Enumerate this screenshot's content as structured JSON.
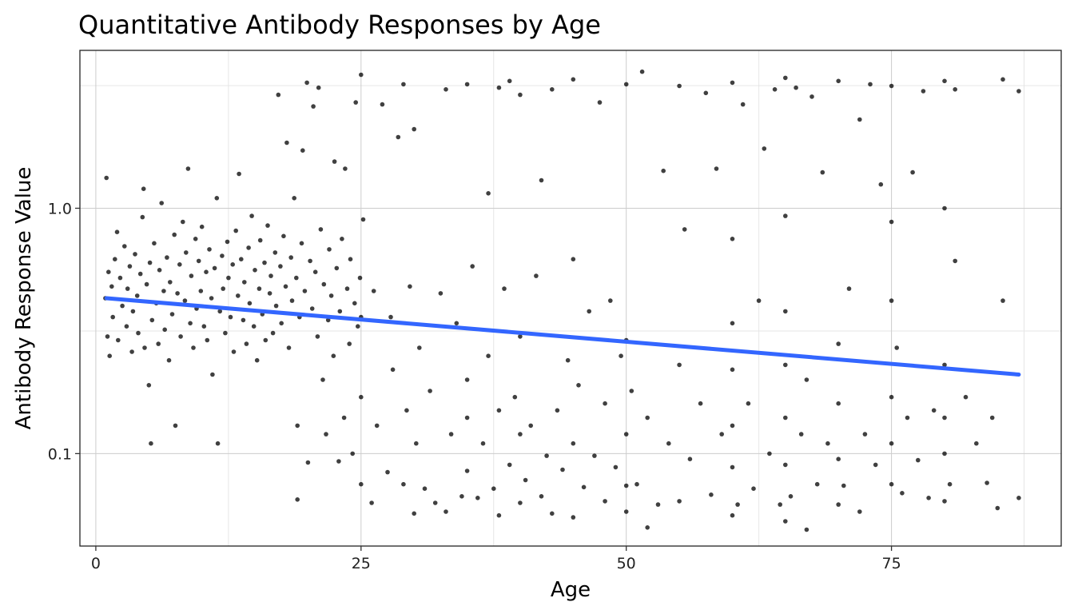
{
  "chart_data": {
    "type": "scatter",
    "title": "Quantitative Antibody Responses by Age",
    "xlabel": "Age",
    "ylabel": "Antibody Response Value",
    "xlim": [
      -1.5,
      91
    ],
    "ylim": [
      0.042,
      4.4
    ],
    "y_scale": "log10",
    "x_ticks": [
      0,
      25,
      50,
      75
    ],
    "x_tick_labels": [
      "0",
      "25",
      "50",
      "75"
    ],
    "x_minor_ticks": [
      12.5,
      37.5,
      62.5,
      87.5
    ],
    "y_ticks": [
      0.1,
      1.0
    ],
    "y_tick_labels": [
      "0.1",
      "1.0"
    ],
    "y_minor_ticks": [
      0.316,
      3.16
    ],
    "grid": true,
    "legend": "none",
    "trend_line": {
      "method": "linear fit on log scale",
      "color": "#3366ff",
      "x": [
        1,
        87
      ],
      "y": [
        0.43,
        0.21
      ]
    },
    "point_color": "#000000",
    "points": [
      [
        0.9,
        0.43
      ],
      [
        1.0,
        1.33
      ],
      [
        1.1,
        0.3
      ],
      [
        1.2,
        0.55
      ],
      [
        1.3,
        0.25
      ],
      [
        1.5,
        0.48
      ],
      [
        1.6,
        0.36
      ],
      [
        1.8,
        0.62
      ],
      [
        2.0,
        0.8
      ],
      [
        2.1,
        0.29
      ],
      [
        2.3,
        0.52
      ],
      [
        2.5,
        0.4
      ],
      [
        2.7,
        0.7
      ],
      [
        2.9,
        0.33
      ],
      [
        3.0,
        0.47
      ],
      [
        3.2,
        0.58
      ],
      [
        3.4,
        0.26
      ],
      [
        3.5,
        0.38
      ],
      [
        3.7,
        0.65
      ],
      [
        3.9,
        0.44
      ],
      [
        4.0,
        0.31
      ],
      [
        4.2,
        0.54
      ],
      [
        4.4,
        0.92
      ],
      [
        4.5,
        1.2
      ],
      [
        4.6,
        0.27
      ],
      [
        4.8,
        0.49
      ],
      [
        5.0,
        0.19
      ],
      [
        5.1,
        0.6
      ],
      [
        5.2,
        0.11
      ],
      [
        5.3,
        0.35
      ],
      [
        5.5,
        0.72
      ],
      [
        5.7,
        0.41
      ],
      [
        5.9,
        0.28
      ],
      [
        6.0,
        0.56
      ],
      [
        6.2,
        1.05
      ],
      [
        6.4,
        0.46
      ],
      [
        6.5,
        0.32
      ],
      [
        6.7,
        0.63
      ],
      [
        6.9,
        0.24
      ],
      [
        7.0,
        0.5
      ],
      [
        7.2,
        0.37
      ],
      [
        7.4,
        0.78
      ],
      [
        7.5,
        0.13
      ],
      [
        7.7,
        0.45
      ],
      [
        7.9,
        0.59
      ],
      [
        8.0,
        0.3
      ],
      [
        8.2,
        0.88
      ],
      [
        8.4,
        0.42
      ],
      [
        8.5,
        0.66
      ],
      [
        8.7,
        1.45
      ],
      [
        8.9,
        0.34
      ],
      [
        9.0,
        0.53
      ],
      [
        9.2,
        0.27
      ],
      [
        9.4,
        0.75
      ],
      [
        9.5,
        0.39
      ],
      [
        9.7,
        0.61
      ],
      [
        9.9,
        0.46
      ],
      [
        10.0,
        0.84
      ],
      [
        10.2,
        0.33
      ],
      [
        10.4,
        0.55
      ],
      [
        10.5,
        0.29
      ],
      [
        10.7,
        0.68
      ],
      [
        10.9,
        0.43
      ],
      [
        11.0,
        0.21
      ],
      [
        11.2,
        0.57
      ],
      [
        11.4,
        1.1
      ],
      [
        11.5,
        0.11
      ],
      [
        11.7,
        0.38
      ],
      [
        11.9,
        0.64
      ],
      [
        12.0,
        0.47
      ],
      [
        12.2,
        0.31
      ],
      [
        12.4,
        0.73
      ],
      [
        12.5,
        0.52
      ],
      [
        12.7,
        0.36
      ],
      [
        12.9,
        0.59
      ],
      [
        13.0,
        0.26
      ],
      [
        13.2,
        0.81
      ],
      [
        13.4,
        0.44
      ],
      [
        13.5,
        1.38
      ],
      [
        13.7,
        0.62
      ],
      [
        13.9,
        0.35
      ],
      [
        14.0,
        0.5
      ],
      [
        14.2,
        0.28
      ],
      [
        14.4,
        0.69
      ],
      [
        14.5,
        0.41
      ],
      [
        14.7,
        0.93
      ],
      [
        14.9,
        0.33
      ],
      [
        15.0,
        0.56
      ],
      [
        15.2,
        0.24
      ],
      [
        15.4,
        0.47
      ],
      [
        15.5,
        0.74
      ],
      [
        15.7,
        0.37
      ],
      [
        15.9,
        0.6
      ],
      [
        16.0,
        0.29
      ],
      [
        16.2,
        0.85
      ],
      [
        16.4,
        0.45
      ],
      [
        16.5,
        0.53
      ],
      [
        16.7,
        0.31
      ],
      [
        16.9,
        0.66
      ],
      [
        17.0,
        0.4
      ],
      [
        17.2,
        2.9
      ],
      [
        17.4,
        0.58
      ],
      [
        17.5,
        0.34
      ],
      [
        17.7,
        0.77
      ],
      [
        17.9,
        0.48
      ],
      [
        18.0,
        1.85
      ],
      [
        18.2,
        0.27
      ],
      [
        18.4,
        0.63
      ],
      [
        18.5,
        0.42
      ],
      [
        18.7,
        1.1
      ],
      [
        18.9,
        0.52
      ],
      [
        19.0,
        0.065
      ],
      [
        19.0,
        0.13
      ],
      [
        19.2,
        0.36
      ],
      [
        19.4,
        0.72
      ],
      [
        19.5,
        1.72
      ],
      [
        19.7,
        0.46
      ],
      [
        19.9,
        3.25
      ],
      [
        20.0,
        0.092
      ],
      [
        20.2,
        0.61
      ],
      [
        20.4,
        0.39
      ],
      [
        20.5,
        2.6
      ],
      [
        20.7,
        0.55
      ],
      [
        20.9,
        0.3
      ],
      [
        21.0,
        3.1
      ],
      [
        21.2,
        0.82
      ],
      [
        21.4,
        0.2
      ],
      [
        21.5,
        0.49
      ],
      [
        21.7,
        0.12
      ],
      [
        21.9,
        0.35
      ],
      [
        22.0,
        0.68
      ],
      [
        22.2,
        0.44
      ],
      [
        22.4,
        0.25
      ],
      [
        22.5,
        1.55
      ],
      [
        22.7,
        0.57
      ],
      [
        22.9,
        0.093
      ],
      [
        23.0,
        0.38
      ],
      [
        23.2,
        0.75
      ],
      [
        23.4,
        0.14
      ],
      [
        23.5,
        1.45
      ],
      [
        23.7,
        0.47
      ],
      [
        23.9,
        0.28
      ],
      [
        24.0,
        0.62
      ],
      [
        24.2,
        0.1
      ],
      [
        24.4,
        0.41
      ],
      [
        24.5,
        2.7
      ],
      [
        24.7,
        0.33
      ],
      [
        24.9,
        0.52
      ],
      [
        25.0,
        0.075
      ],
      [
        25.0,
        3.5
      ],
      [
        25.0,
        0.17
      ],
      [
        25.0,
        0.36
      ],
      [
        25.2,
        0.9
      ],
      [
        26.0,
        0.063
      ],
      [
        26.2,
        0.46
      ],
      [
        26.5,
        0.13
      ],
      [
        27.0,
        2.65
      ],
      [
        27.5,
        0.084
      ],
      [
        27.8,
        0.36
      ],
      [
        28.0,
        0.22
      ],
      [
        28.5,
        1.95
      ],
      [
        29.0,
        3.2
      ],
      [
        29.0,
        0.075
      ],
      [
        29.3,
        0.15
      ],
      [
        29.6,
        0.48
      ],
      [
        30.0,
        2.1
      ],
      [
        30.0,
        0.057
      ],
      [
        30.2,
        0.11
      ],
      [
        30.5,
        0.27
      ],
      [
        31.0,
        0.072
      ],
      [
        31.5,
        0.18
      ],
      [
        32.0,
        0.063
      ],
      [
        32.5,
        0.45
      ],
      [
        33.0,
        3.05
      ],
      [
        33.0,
        0.058
      ],
      [
        33.5,
        0.12
      ],
      [
        34.0,
        0.34
      ],
      [
        34.5,
        0.067
      ],
      [
        35.0,
        3.2
      ],
      [
        35.0,
        0.14
      ],
      [
        35.0,
        0.2
      ],
      [
        35.0,
        0.085
      ],
      [
        35.5,
        0.58
      ],
      [
        36.0,
        0.066
      ],
      [
        36.5,
        0.11
      ],
      [
        37.0,
        1.15
      ],
      [
        37.0,
        0.25
      ],
      [
        37.5,
        0.072
      ],
      [
        38.0,
        3.1
      ],
      [
        38.0,
        0.15
      ],
      [
        38.0,
        0.056
      ],
      [
        38.5,
        0.47
      ],
      [
        39.0,
        0.09
      ],
      [
        39.0,
        3.3
      ],
      [
        39.5,
        0.17
      ],
      [
        40.0,
        0.063
      ],
      [
        40.0,
        0.12
      ],
      [
        40.0,
        0.3
      ],
      [
        40.0,
        2.9
      ],
      [
        40.5,
        0.078
      ],
      [
        41.0,
        0.13
      ],
      [
        41.5,
        0.53
      ],
      [
        42.0,
        0.067
      ],
      [
        42.0,
        1.3
      ],
      [
        42.5,
        0.098
      ],
      [
        43.0,
        0.057
      ],
      [
        43.0,
        3.05
      ],
      [
        43.5,
        0.15
      ],
      [
        44.0,
        0.086
      ],
      [
        44.5,
        0.24
      ],
      [
        45.0,
        0.055
      ],
      [
        45.0,
        0.11
      ],
      [
        45.0,
        3.35
      ],
      [
        45.0,
        0.62
      ],
      [
        45.5,
        0.19
      ],
      [
        46.0,
        0.073
      ],
      [
        46.5,
        0.38
      ],
      [
        47.0,
        0.098
      ],
      [
        47.5,
        2.7
      ],
      [
        48.0,
        0.064
      ],
      [
        48.0,
        0.16
      ],
      [
        48.5,
        0.42
      ],
      [
        49.0,
        0.088
      ],
      [
        49.5,
        0.25
      ],
      [
        50.0,
        0.058
      ],
      [
        50.0,
        0.12
      ],
      [
        50.0,
        3.2
      ],
      [
        50.0,
        0.29
      ],
      [
        50.0,
        0.074
      ],
      [
        50.5,
        0.18
      ],
      [
        51.0,
        0.075
      ],
      [
        51.5,
        3.6
      ],
      [
        52.0,
        0.05
      ],
      [
        52.0,
        0.14
      ],
      [
        53.0,
        0.062
      ],
      [
        53.5,
        1.42
      ],
      [
        54.0,
        0.11
      ],
      [
        55.0,
        0.064
      ],
      [
        55.0,
        3.15
      ],
      [
        55.0,
        0.23
      ],
      [
        55.5,
        0.82
      ],
      [
        56.0,
        0.095
      ],
      [
        57.0,
        0.16
      ],
      [
        57.5,
        2.95
      ],
      [
        58.0,
        0.068
      ],
      [
        58.5,
        1.45
      ],
      [
        59.0,
        0.12
      ],
      [
        60.0,
        0.056
      ],
      [
        60.0,
        0.088
      ],
      [
        60.0,
        0.13
      ],
      [
        60.0,
        0.22
      ],
      [
        60.0,
        0.34
      ],
      [
        60.0,
        3.25
      ],
      [
        60.0,
        0.75
      ],
      [
        60.5,
        0.062
      ],
      [
        61.0,
        2.65
      ],
      [
        61.5,
        0.16
      ],
      [
        62.0,
        0.072
      ],
      [
        62.5,
        0.42
      ],
      [
        63.0,
        1.75
      ],
      [
        63.5,
        0.1
      ],
      [
        64.0,
        3.05
      ],
      [
        64.5,
        0.062
      ],
      [
        65.0,
        0.053
      ],
      [
        65.0,
        0.09
      ],
      [
        65.0,
        0.14
      ],
      [
        65.0,
        0.23
      ],
      [
        65.0,
        3.4
      ],
      [
        65.0,
        0.38
      ],
      [
        65.0,
        0.93
      ],
      [
        65.5,
        0.067
      ],
      [
        66.0,
        3.1
      ],
      [
        66.5,
        0.12
      ],
      [
        67.0,
        0.049
      ],
      [
        67.0,
        0.2
      ],
      [
        67.5,
        2.85
      ],
      [
        68.0,
        0.075
      ],
      [
        68.5,
        1.4
      ],
      [
        69.0,
        0.11
      ],
      [
        70.0,
        0.062
      ],
      [
        70.0,
        0.095
      ],
      [
        70.0,
        0.16
      ],
      [
        70.0,
        3.3
      ],
      [
        70.0,
        0.28
      ],
      [
        70.5,
        0.074
      ],
      [
        71.0,
        0.47
      ],
      [
        72.0,
        0.058
      ],
      [
        72.0,
        2.3
      ],
      [
        72.5,
        0.12
      ],
      [
        73.0,
        3.2
      ],
      [
        73.5,
        0.09
      ],
      [
        74.0,
        1.25
      ],
      [
        75.0,
        0.075
      ],
      [
        75.0,
        0.11
      ],
      [
        75.0,
        0.17
      ],
      [
        75.0,
        3.15
      ],
      [
        75.0,
        0.42
      ],
      [
        75.0,
        0.88
      ],
      [
        75.5,
        0.27
      ],
      [
        76.0,
        0.069
      ],
      [
        76.5,
        0.14
      ],
      [
        77.0,
        1.4
      ],
      [
        77.5,
        0.094
      ],
      [
        78.0,
        3.0
      ],
      [
        78.5,
        0.066
      ],
      [
        79.0,
        0.15
      ],
      [
        80.0,
        0.064
      ],
      [
        80.0,
        0.1
      ],
      [
        80.0,
        0.14
      ],
      [
        80.0,
        3.3
      ],
      [
        80.0,
        1.0
      ],
      [
        80.0,
        0.23
      ],
      [
        80.5,
        0.075
      ],
      [
        81.0,
        3.05
      ],
      [
        81.0,
        0.61
      ],
      [
        82.0,
        0.17
      ],
      [
        83.0,
        0.11
      ],
      [
        84.0,
        0.076
      ],
      [
        84.5,
        0.14
      ],
      [
        85.0,
        0.06
      ],
      [
        85.5,
        3.35
      ],
      [
        85.5,
        0.42
      ],
      [
        87.0,
        0.066
      ],
      [
        87.0,
        3.0
      ]
    ]
  }
}
